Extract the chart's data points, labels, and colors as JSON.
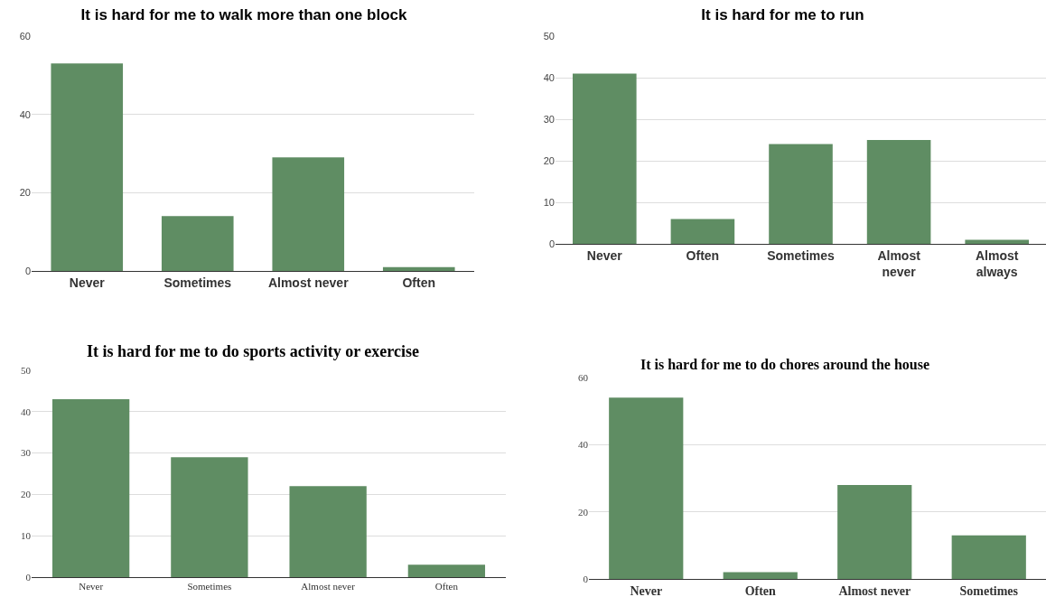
{
  "chart_data": [
    {
      "type": "bar",
      "title": "It is hard for me to walk more than one block",
      "categories": [
        "Never",
        "Sometimes",
        "Almost never",
        "Often"
      ],
      "values": [
        53,
        14,
        29,
        1
      ],
      "color": "#5f8d63",
      "ylim": [
        0,
        60
      ],
      "yticks": [
        0,
        20,
        40,
        60
      ],
      "grid": "y"
    },
    {
      "type": "bar",
      "title": "It is hard for me to run",
      "categories": [
        "Never",
        "Often",
        "Sometimes",
        "Almost never",
        "Almost always"
      ],
      "values": [
        41,
        6,
        24,
        25,
        1
      ],
      "color": "#5f8d63",
      "ylim": [
        0,
        50
      ],
      "yticks": [
        0,
        10,
        20,
        30,
        40,
        50
      ],
      "grid": "y"
    },
    {
      "type": "bar",
      "title": "It is hard for me to do sports activity or exercise",
      "categories": [
        "Never",
        "Sometimes",
        "Almost never",
        "Often"
      ],
      "values": [
        43,
        29,
        22,
        3
      ],
      "color": "#5f8d63",
      "ylim": [
        0,
        50
      ],
      "yticks": [
        0,
        10,
        20,
        30,
        40,
        50
      ],
      "grid": "y"
    },
    {
      "type": "bar",
      "title": "It is hard for me to do chores around the house",
      "categories": [
        "Never",
        "Often",
        "Almost never",
        "Sometimes"
      ],
      "values": [
        54,
        2,
        28,
        13
      ],
      "color": "#5f8d63",
      "ylim": [
        0,
        60
      ],
      "yticks": [
        0,
        20,
        40,
        60
      ],
      "grid": "y"
    }
  ]
}
